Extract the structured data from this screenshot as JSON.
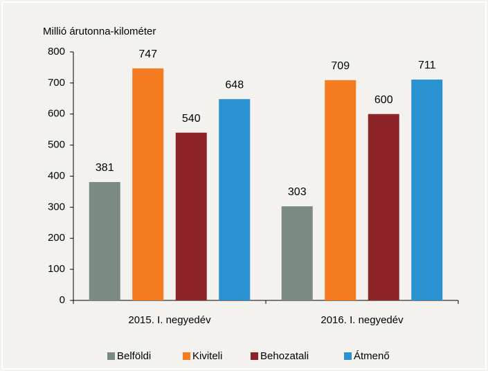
{
  "chart_data": {
    "type": "bar",
    "y_label": "Millió árutonna-kilométer",
    "categories": [
      "2015. I. negyedév",
      "2016. I. negyedév"
    ],
    "series": [
      {
        "name": "Belföldi",
        "color": "#7b8b83",
        "values": [
          381,
          303
        ]
      },
      {
        "name": "Kiviteli",
        "color": "#f47b20",
        "values": [
          747,
          709
        ]
      },
      {
        "name": "Behozatali",
        "color": "#8c2327",
        "values": [
          540,
          600
        ]
      },
      {
        "name": "Átmenő",
        "color": "#2b92d1",
        "values": [
          648,
          711
        ]
      }
    ],
    "ylim": [
      0,
      800
    ],
    "yticks": [
      0,
      100,
      200,
      300,
      400,
      500,
      600,
      700,
      800
    ],
    "legend": "bottom"
  }
}
